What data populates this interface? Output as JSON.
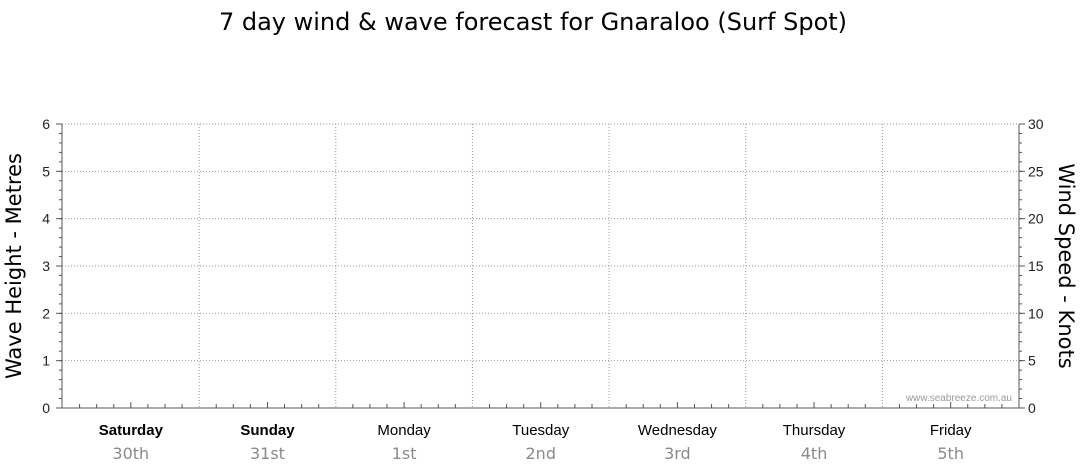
{
  "chart_data": {
    "type": "line",
    "title": "7 day wind & wave forecast for Gnaraloo (Surf Spot)",
    "ylabel": "Wave Height - Metres",
    "y2label": "Wind Speed - Knots",
    "ylim": [
      0,
      6
    ],
    "y2lim": [
      0,
      30
    ],
    "yticks": [
      "0",
      "1",
      "2",
      "3",
      "4",
      "5",
      "6"
    ],
    "y2ticks": [
      "0",
      "5",
      "10",
      "15",
      "20",
      "25",
      "30"
    ],
    "grid": true,
    "days": [
      {
        "day": "Saturday",
        "date": "30th",
        "weekend": true
      },
      {
        "day": "Sunday",
        "date": "31st",
        "weekend": true
      },
      {
        "day": "Monday",
        "date": "1st",
        "weekend": false
      },
      {
        "day": "Tuesday",
        "date": "2nd",
        "weekend": false
      },
      {
        "day": "Wednesday",
        "date": "3rd",
        "weekend": false
      },
      {
        "day": "Thursday",
        "date": "4th",
        "weekend": false
      },
      {
        "day": "Friday",
        "date": "5th",
        "weekend": false
      }
    ],
    "series": [],
    "watermark": "www.seabreeze.com.au"
  }
}
